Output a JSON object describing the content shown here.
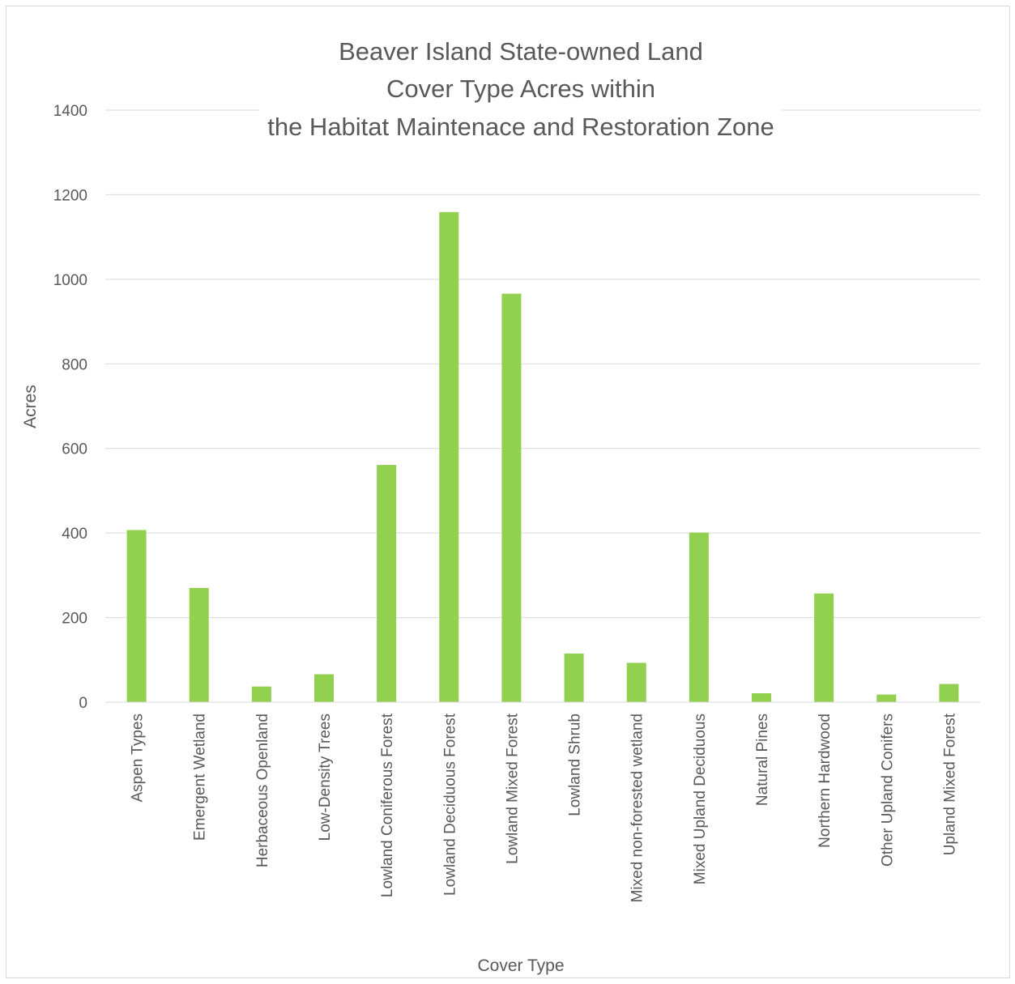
{
  "chart_data": {
    "type": "bar",
    "title_lines": [
      "Beaver Island State-owned Land",
      "Cover Type Acres within",
      "the Habitat Maintenace and Restoration Zone"
    ],
    "xlabel": "Cover Type",
    "ylabel": "Acres",
    "ylim": [
      0,
      1400
    ],
    "yticks": [
      0,
      200,
      400,
      600,
      800,
      1000,
      1200,
      1400
    ],
    "grid": true,
    "legend": "none",
    "bar_color": "#92d050",
    "categories": [
      "Aspen Types",
      "Emergent Wetland",
      "Herbaceous Openland",
      "Low-Density Trees",
      "Lowland Coniferous Forest",
      "Lowland Deciduous Forest",
      "Lowland Mixed Forest",
      "Lowland Shrub",
      "Mixed non-forested wetland",
      "Mixed Upland Deciduous",
      "Natural Pines",
      "Northern Hardwood",
      "Other Upland Conifers",
      "Upland Mixed Forest"
    ],
    "values": [
      407,
      270,
      37,
      66,
      561,
      1159,
      966,
      115,
      93,
      401,
      21,
      257,
      18,
      43
    ]
  }
}
